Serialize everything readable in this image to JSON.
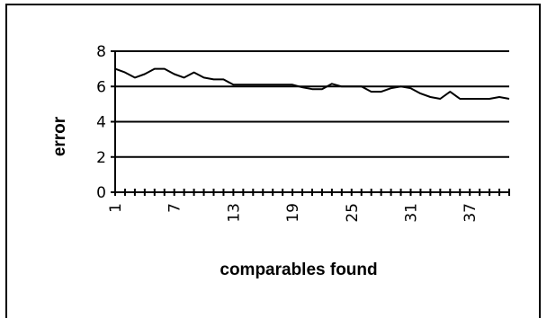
{
  "chart_data": {
    "type": "line",
    "title": "",
    "xlabel": "comparables found",
    "ylabel": "error",
    "ylim": [
      0,
      8
    ],
    "yticks": [
      "0",
      "2",
      "4",
      "6",
      "8"
    ],
    "xtick_labels": [
      "1",
      "7",
      "13",
      "19",
      "25",
      "31",
      "37"
    ],
    "grid": true,
    "legend": "none",
    "x": [
      1,
      2,
      3,
      4,
      5,
      6,
      7,
      8,
      9,
      10,
      11,
      12,
      13,
      14,
      15,
      16,
      17,
      18,
      19,
      20,
      21,
      22,
      23,
      24,
      25,
      26,
      27,
      28,
      29,
      30,
      31,
      32,
      33,
      34,
      35,
      36,
      37,
      38,
      39,
      40,
      41
    ],
    "series": [
      {
        "values": [
          7.0,
          6.8,
          6.5,
          6.7,
          7.0,
          7.0,
          6.7,
          6.5,
          6.8,
          6.5,
          6.4,
          6.4,
          6.1,
          6.1,
          6.1,
          6.1,
          6.1,
          6.1,
          6.1,
          5.95,
          5.85,
          5.85,
          6.15,
          6.0,
          6.0,
          6.0,
          5.7,
          5.7,
          5.9,
          6.0,
          5.9,
          5.6,
          5.4,
          5.3,
          5.7,
          5.3,
          5.3,
          5.3,
          5.3,
          5.4,
          5.3
        ],
        "color": "#000000"
      }
    ]
  }
}
